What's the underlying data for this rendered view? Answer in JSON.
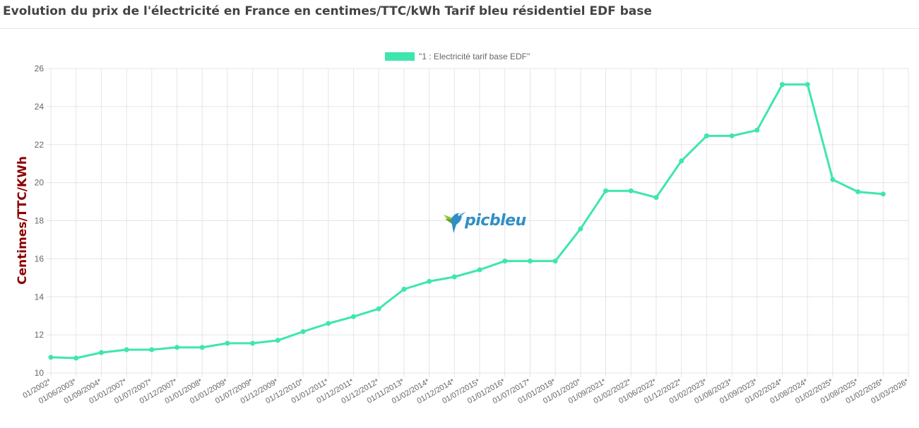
{
  "page": {
    "title": "Evolution du prix de l'électricité en France en centimes/TTC/kWh Tarif bleu résidentiel EDF base",
    "logo_text": "picbleu"
  },
  "colors": {
    "series": "#3ee6ad",
    "grid": "#e5e5e5",
    "ylabel": "#8b0000",
    "title": "#444444"
  },
  "chart_data": {
    "type": "line",
    "title": "Evolution du prix de l'électricité en France en centimes/TTC/kWh Tarif bleu résidentiel EDF base",
    "xlabel": "",
    "ylabel": "Centimes/TTC/KWh",
    "ylim": [
      10,
      26
    ],
    "yticks": [
      10,
      12,
      14,
      16,
      18,
      20,
      22,
      24,
      26
    ],
    "grid": true,
    "legend_position": "top",
    "categories": [
      "01/2002*",
      "01/06/2003*",
      "01/09/2004*",
      "01/01/2007*",
      "01/07/2007*",
      "01/12/2007*",
      "01/01/2008*",
      "01/01/2009*",
      "01/07/2009*",
      "01/12/2009*",
      "01/12/2010*",
      "01/01/2011*",
      "01/12/2011*",
      "01/12/2012*",
      "01/11/2013*",
      "01/02/2014*",
      "01/12/2014*",
      "01/07/2015*",
      "01/01/2016*",
      "01/07/2017*",
      "01/01/2019*",
      "01/01/2020*",
      "01/09/2021*",
      "01/02/2022*",
      "01/06/2022*",
      "01/12/2022*",
      "01/02/2023*",
      "01/08/2023*",
      "01/09/2023*",
      "01/02/2024*",
      "01/08/2024*",
      "01/02/2025*",
      "01/08/2025*",
      "01/02/2026*",
      "01/03/2026*"
    ],
    "series": [
      {
        "name": "\"1 : Electricité tarif base EDF\"",
        "values": [
          10.82,
          10.78,
          11.07,
          11.22,
          11.22,
          11.34,
          11.34,
          11.56,
          11.56,
          11.71,
          12.17,
          12.6,
          12.96,
          13.37,
          14.4,
          14.81,
          15.05,
          15.42,
          15.88,
          15.88,
          15.88,
          17.57,
          19.57,
          19.57,
          19.22,
          21.14,
          22.46,
          22.46,
          22.76,
          25.16,
          25.16,
          20.16,
          19.52,
          19.4,
          null
        ]
      }
    ]
  }
}
